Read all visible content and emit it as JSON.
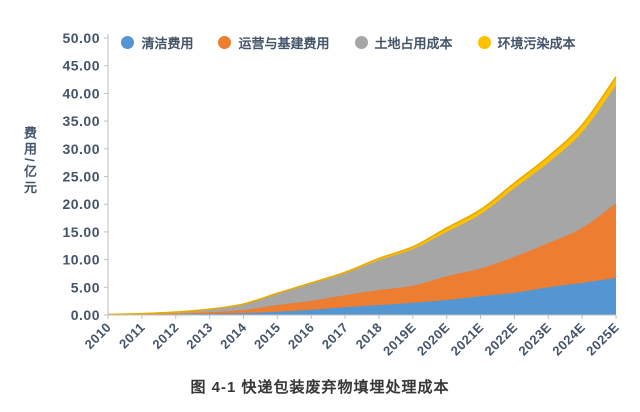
{
  "chart_data": {
    "type": "area",
    "stacked": true,
    "caption": "图 4-1 快递包装废弃物填埋处理成本",
    "ylabel": "费用/亿元",
    "ylim": [
      0,
      50
    ],
    "ytick_step": 5,
    "ytick_labels": [
      "0.00",
      "5.00",
      "10.00",
      "15.00",
      "20.00",
      "25.00",
      "30.00",
      "35.00",
      "40.00",
      "45.00",
      "50.00"
    ],
    "categories": [
      "2010",
      "2011",
      "2012",
      "2013",
      "2014",
      "2015",
      "2016",
      "2017",
      "2018",
      "2019E",
      "2020E",
      "2021E",
      "2022E",
      "2023E",
      "2024E",
      "2025E"
    ],
    "series": [
      {
        "name": "清洁费用",
        "color": "#5496D2",
        "values": [
          0.02,
          0.05,
          0.1,
          0.2,
          0.35,
          0.6,
          0.95,
          1.4,
          1.8,
          2.2,
          2.7,
          3.4,
          4.0,
          5.0,
          5.8,
          6.7
        ]
      },
      {
        "name": "运营与基建费用",
        "color": "#ED7D31",
        "values": [
          0.03,
          0.08,
          0.15,
          0.3,
          0.55,
          1.2,
          1.6,
          2.2,
          2.7,
          3.1,
          4.3,
          5.0,
          6.5,
          8.0,
          9.9,
          13.5
        ]
      },
      {
        "name": "土地占用成本",
        "color": "#A6A6A6",
        "values": [
          0.05,
          0.1,
          0.25,
          0.5,
          1.0,
          2.0,
          3.1,
          3.9,
          5.4,
          6.6,
          8.0,
          9.8,
          12.4,
          14.5,
          17.3,
          21.3
        ]
      },
      {
        "name": "环境污染成本",
        "color": "#FFC000",
        "values": [
          0.0,
          0.01,
          0.02,
          0.04,
          0.08,
          0.12,
          0.15,
          0.2,
          0.3,
          0.4,
          0.7,
          0.8,
          0.9,
          1.1,
          1.3,
          1.5
        ]
      }
    ],
    "legend_position": "top",
    "grid": false,
    "colors": {
      "axis": "#BFBFBF",
      "tick_label": "#44546A",
      "caption_text": "#363636",
      "top_edge_stroke": "#E5AC00"
    }
  }
}
